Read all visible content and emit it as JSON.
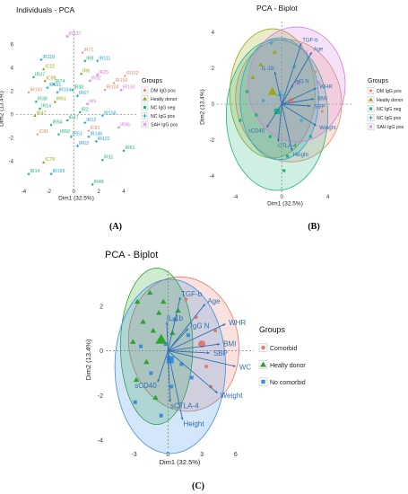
{
  "panels": [
    {
      "id": "A",
      "caption": "(A)",
      "chart_data": {
        "type": "scatter",
        "title": "Individuals - PCA",
        "xlabel": "Dim1 (32.5%)",
        "ylabel": "Dim2 (13.4%)",
        "xlim": [
          -4.6,
          5.0
        ],
        "ylim": [
          -6.2,
          7.2
        ],
        "xticks": [
          -4,
          -2,
          0,
          2,
          4
        ],
        "yticks": [
          -4,
          -2,
          0,
          2,
          4,
          6
        ],
        "legend_title": "Groups",
        "legend_position": "right",
        "groups": [
          {
            "name": "DM IgG pos",
            "color": "#e8896a"
          },
          {
            "name": "Healty donor",
            "color": "#9aa614"
          },
          {
            "name": "NC IgG neg",
            "color": "#1eb47a"
          },
          {
            "name": "NC IgG pos",
            "color": "#24a8cc"
          },
          {
            "name": "SAH IgG pos",
            "color": "#d67ae0"
          }
        ],
        "points": [
          {
            "label": "IR137",
            "x": -0.5,
            "y": 6.7,
            "g": 4
          },
          {
            "label": "IR71",
            "x": 0.7,
            "y": 5.3,
            "g": 0
          },
          {
            "label": "IR118",
            "x": -2.6,
            "y": 4.7,
            "g": 3
          },
          {
            "label": "IR8",
            "x": 0.9,
            "y": 4.6,
            "g": 2
          },
          {
            "label": "IR111",
            "x": 1.9,
            "y": 4.6,
            "g": 3
          },
          {
            "label": "IC22",
            "x": -2.4,
            "y": 3.9,
            "g": 1
          },
          {
            "label": "IR37",
            "x": -3.2,
            "y": 3.2,
            "g": 2
          },
          {
            "label": "IR6",
            "x": 0.6,
            "y": 3.5,
            "g": 1
          },
          {
            "label": "IR25",
            "x": 1.9,
            "y": 3.4,
            "g": 4
          },
          {
            "label": "IR152",
            "x": 4.1,
            "y": 3.3,
            "g": 0
          },
          {
            "label": "IC88",
            "x": -2.3,
            "y": 2.9,
            "g": 1
          },
          {
            "label": "IR74",
            "x": -1.6,
            "y": 2.6,
            "g": 2
          },
          {
            "label": "IR92",
            "x": 1.3,
            "y": 2.9,
            "g": 4
          },
          {
            "label": "IR159",
            "x": 3.2,
            "y": 2.7,
            "g": 0
          },
          {
            "label": "IR151",
            "x": -2.1,
            "y": 2.3,
            "g": 3
          },
          {
            "label": "IR30",
            "x": -0.1,
            "y": 2.1,
            "g": 2
          },
          {
            "label": "IR104",
            "x": 2.5,
            "y": 2.1,
            "g": 0
          },
          {
            "label": "IR150",
            "x": 3.8,
            "y": 2.1,
            "g": 4
          },
          {
            "label": "IR160",
            "x": -3.6,
            "y": 1.9,
            "g": 0
          },
          {
            "label": "IR154",
            "x": -1.3,
            "y": 1.9,
            "g": 3
          },
          {
            "label": "IR67",
            "x": 0.3,
            "y": 1.6,
            "g": 3
          },
          {
            "label": "IR38",
            "x": -3.0,
            "y": 1.1,
            "g": 2
          },
          {
            "label": "IR61",
            "x": -1.5,
            "y": 1.1,
            "g": 1
          },
          {
            "label": "IR9",
            "x": 1.1,
            "y": 0.9,
            "g": 4
          },
          {
            "label": "IR14",
            "x": -2.7,
            "y": 0.5,
            "g": 2
          },
          {
            "label": "IR158",
            "x": 2.3,
            "y": -0.1,
            "g": 3
          },
          {
            "label": "IR2",
            "x": 0.5,
            "y": 0.2,
            "g": 2
          },
          {
            "label": "IR47",
            "x": -3.1,
            "y": -0.1,
            "g": 1
          },
          {
            "label": "IR17",
            "x": -0.5,
            "y": -0.5,
            "g": 2
          },
          {
            "label": "IR54",
            "x": -1.8,
            "y": -0.9,
            "g": 2
          },
          {
            "label": "IR12",
            "x": 0.9,
            "y": -0.7,
            "g": 3
          },
          {
            "label": "IR96",
            "x": 3.6,
            "y": -1.1,
            "g": 4
          },
          {
            "label": "IC81",
            "x": -2.9,
            "y": -1.7,
            "g": 0
          },
          {
            "label": "IC81",
            "x": 1.2,
            "y": -1.4,
            "g": 0
          },
          {
            "label": "IR146",
            "x": 1.2,
            "y": -1.9,
            "g": 3
          },
          {
            "label": "IR122",
            "x": 1.8,
            "y": -2.3,
            "g": 3
          },
          {
            "label": "IR50",
            "x": -1.2,
            "y": -1.7,
            "g": 2
          },
          {
            "label": "IR51",
            "x": -0.2,
            "y": -1.9,
            "g": 3
          },
          {
            "label": "IR63",
            "x": 0.3,
            "y": -2.7,
            "g": 3
          },
          {
            "label": "IR61",
            "x": 4.0,
            "y": -3.1,
            "g": 2
          },
          {
            "label": "IC79",
            "x": -2.4,
            "y": -4.1,
            "g": 1
          },
          {
            "label": "IR11",
            "x": 2.3,
            "y": -3.9,
            "g": 2
          },
          {
            "label": "IR14",
            "x": -3.6,
            "y": -5.1,
            "g": 2
          },
          {
            "label": "IR169",
            "x": -1.8,
            "y": -5.1,
            "g": 3
          },
          {
            "label": "IR48",
            "x": 1.5,
            "y": -6.0,
            "g": 2
          }
        ]
      }
    },
    {
      "id": "B",
      "caption": "(B)",
      "chart_data": {
        "type": "scatter",
        "title": "PCA - Biplot",
        "xlabel": "Dim1 (32.5%)",
        "ylabel": "Dim2 (13.4%)",
        "xlim": [
          -5.6,
          6.2
        ],
        "ylim": [
          -4.9,
          4.6
        ],
        "xticks": [
          -4,
          0,
          4
        ],
        "yticks": [
          -4,
          -2,
          0,
          2,
          4
        ],
        "legend_title": "Groups",
        "legend_position": "right",
        "groups": [
          {
            "name": "DM IgG pos",
            "color": "#e8896a"
          },
          {
            "name": "Healty donor",
            "color": "#9aa614"
          },
          {
            "name": "NC IgG neg",
            "color": "#1eb47a"
          },
          {
            "name": "NC IgG pos",
            "color": "#24a8cc"
          },
          {
            "name": "SAH IgG pos",
            "color": "#d67ae0"
          }
        ],
        "ellipses": [
          {
            "g": 0,
            "cx": 0.6,
            "cy": 0.2,
            "rx": 4.6,
            "ry": 3.4,
            "rot": -5
          },
          {
            "g": 1,
            "cx": -0.8,
            "cy": 0.6,
            "rx": 3.7,
            "ry": 3.6,
            "rot": 0
          },
          {
            "g": 2,
            "cx": -0.4,
            "cy": -0.6,
            "rx": 4.4,
            "ry": 4.2,
            "rot": 0
          },
          {
            "g": 3,
            "cx": -0.2,
            "cy": 0.3,
            "rx": 3.4,
            "ry": 3.4,
            "rot": 0
          },
          {
            "g": 4,
            "cx": 1.3,
            "cy": 1.1,
            "rx": 4.2,
            "ry": 3.2,
            "rot": 0
          }
        ],
        "vectors": [
          {
            "label": "TGF-b",
            "x": 1.7,
            "y": 3.4
          },
          {
            "label": "Age",
            "x": 2.6,
            "y": 2.9
          },
          {
            "label": "IL-1b",
            "x": -0.6,
            "y": 1.8
          },
          {
            "label": "IgG N",
            "x": 1.0,
            "y": 1.1
          },
          {
            "label": "WHR",
            "x": 3.0,
            "y": 0.9
          },
          {
            "label": "BMI",
            "x": 2.8,
            "y": 0.3
          },
          {
            "label": "SBP",
            "x": 2.5,
            "y": -0.1
          },
          {
            "label": "Weight",
            "x": 3.0,
            "y": -1.2
          },
          {
            "label": "sCD40",
            "x": -1.3,
            "y": -1.3
          },
          {
            "label": "CTLA-4",
            "x": -0.3,
            "y": -2.1
          },
          {
            "label": "Height",
            "x": 0.9,
            "y": -2.6
          }
        ],
        "centroids": [
          {
            "g": 0,
            "x": 0.8,
            "y": 0.2
          },
          {
            "g": 1,
            "x": -0.8,
            "y": 0.7
          },
          {
            "g": 2,
            "x": -0.4,
            "y": -0.4
          },
          {
            "g": 3,
            "x": -0.1,
            "y": 0.5
          },
          {
            "g": 4,
            "x": 1.4,
            "y": 1.2
          }
        ],
        "points": [
          {
            "x": -2.5,
            "y": 1.5,
            "g": 1
          },
          {
            "x": -1.8,
            "y": 2.2,
            "g": 1
          },
          {
            "x": -0.6,
            "y": 2.9,
            "g": 1
          },
          {
            "x": -3.0,
            "y": 0.7,
            "g": 2
          },
          {
            "x": -2.2,
            "y": -0.6,
            "g": 2
          },
          {
            "x": -1.0,
            "y": -1.8,
            "g": 2
          },
          {
            "x": 0.5,
            "y": -2.9,
            "g": 2
          },
          {
            "x": 2.5,
            "y": -1.8,
            "g": 2
          },
          {
            "x": -0.9,
            "y": 3.4,
            "g": 3
          },
          {
            "x": 1.1,
            "y": 2.1,
            "g": 3
          },
          {
            "x": -1.6,
            "y": 0.2,
            "g": 3
          },
          {
            "x": 1.7,
            "y": -0.9,
            "g": 3
          },
          {
            "x": 2.9,
            "y": 1.8,
            "g": 0
          },
          {
            "x": 3.5,
            "y": -0.4,
            "g": 0
          },
          {
            "x": 2.1,
            "y": 2.9,
            "g": 4
          },
          {
            "x": 3.2,
            "y": 1.2,
            "g": 4
          },
          {
            "x": -3.6,
            "y": -0.9,
            "g": 2
          },
          {
            "x": 0.2,
            "y": -3.7,
            "g": 2
          }
        ]
      }
    },
    {
      "id": "C",
      "caption": "(C)",
      "chart_data": {
        "type": "scatter",
        "title": "PCA - Biplot",
        "xlabel": "Dim1 (32.5%)",
        "ylabel": "Dim2 (13.4%)",
        "xlim": [
          -5.5,
          7.6
        ],
        "ylim": [
          -4.4,
          3.6
        ],
        "xticks": [
          -3,
          0,
          3,
          6
        ],
        "yticks": [
          -4,
          -2,
          0,
          2
        ],
        "legend_title": "Groups",
        "legend_position": "right",
        "groups": [
          {
            "name": "Comorbid",
            "color": "#e37a6a"
          },
          {
            "name": "Healty donor",
            "color": "#2aa52a"
          },
          {
            "name": "No comorbid",
            "color": "#3b8ee3"
          }
        ],
        "ellipses": [
          {
            "g": 0,
            "cx": 1.4,
            "cy": 0.3,
            "rx": 4.9,
            "ry": 3.0,
            "rot": -4
          },
          {
            "g": 1,
            "cx": -1.0,
            "cy": 0.2,
            "rx": 3.2,
            "ry": 3.5,
            "rot": 0
          },
          {
            "g": 2,
            "cx": 0.2,
            "cy": -0.7,
            "rx": 4.9,
            "ry": 3.9,
            "rot": 0
          }
        ],
        "vectors": [
          {
            "label": "TGF-b",
            "x": 1.1,
            "y": 2.4
          },
          {
            "label": "Age",
            "x": 3.3,
            "y": 2.1
          },
          {
            "label": "IL-1b",
            "x": -0.1,
            "y": 1.3
          },
          {
            "label": "IgG N",
            "x": 1.8,
            "y": 1.0
          },
          {
            "label": "WHR",
            "x": 5.1,
            "y": 1.2
          },
          {
            "label": "BMI",
            "x": 4.6,
            "y": 0.3
          },
          {
            "label": "SBP",
            "x": 3.7,
            "y": -0.1
          },
          {
            "label": "WC",
            "x": 6.0,
            "y": -0.7
          },
          {
            "label": "Weight",
            "x": 4.4,
            "y": -1.9
          },
          {
            "label": "sCD40",
            "x": -0.9,
            "y": -1.4
          },
          {
            "label": "sCTLA-4",
            "x": 0.2,
            "y": -2.3
          },
          {
            "label": "Height",
            "x": 1.3,
            "y": -3.1
          }
        ],
        "centroids": [
          {
            "g": 0,
            "x": 3.0,
            "y": 0.3
          },
          {
            "g": 1,
            "x": -0.6,
            "y": 0.5
          },
          {
            "g": 2,
            "x": 0.2,
            "y": -0.4
          }
        ],
        "points": [
          {
            "x": -2.7,
            "y": 2.2,
            "g": 1
          },
          {
            "x": -2.2,
            "y": 1.3,
            "g": 1
          },
          {
            "x": -1.6,
            "y": 2.6,
            "g": 1
          },
          {
            "x": -1.3,
            "y": 0.9,
            "g": 1
          },
          {
            "x": -0.8,
            "y": 1.7,
            "g": 1
          },
          {
            "x": -0.4,
            "y": 2.2,
            "g": 1
          },
          {
            "x": -1.9,
            "y": -0.5,
            "g": 1
          },
          {
            "x": 0.4,
            "y": 0.8,
            "g": 1
          },
          {
            "x": -2.8,
            "y": -1.3,
            "g": 1
          },
          {
            "x": -1.1,
            "y": -2.1,
            "g": 1
          },
          {
            "x": 0.9,
            "y": 1.8,
            "g": 1
          },
          {
            "x": -3.1,
            "y": 0.4,
            "g": 1
          },
          {
            "x": -2.4,
            "y": 0.2,
            "g": 2
          },
          {
            "x": -1.5,
            "y": -1.0,
            "g": 2
          },
          {
            "x": -0.6,
            "y": -2.9,
            "g": 2
          },
          {
            "x": 0.3,
            "y": -1.6,
            "g": 2
          },
          {
            "x": 1.2,
            "y": -0.6,
            "g": 2
          },
          {
            "x": 0.6,
            "y": 1.4,
            "g": 2
          },
          {
            "x": 2.1,
            "y": -1.2,
            "g": 2
          },
          {
            "x": -2.9,
            "y": -2.3,
            "g": 2
          },
          {
            "x": 1.8,
            "y": 0.7,
            "g": 2
          },
          {
            "x": -0.2,
            "y": 0.3,
            "g": 2
          },
          {
            "x": 2.5,
            "y": 1.5,
            "g": 0
          },
          {
            "x": 3.4,
            "y": -0.7,
            "g": 0
          },
          {
            "x": 4.2,
            "y": 0.9,
            "g": 0
          },
          {
            "x": 1.6,
            "y": 2.3,
            "g": 0
          },
          {
            "x": 3.8,
            "y": -1.6,
            "g": 0
          }
        ]
      }
    }
  ]
}
